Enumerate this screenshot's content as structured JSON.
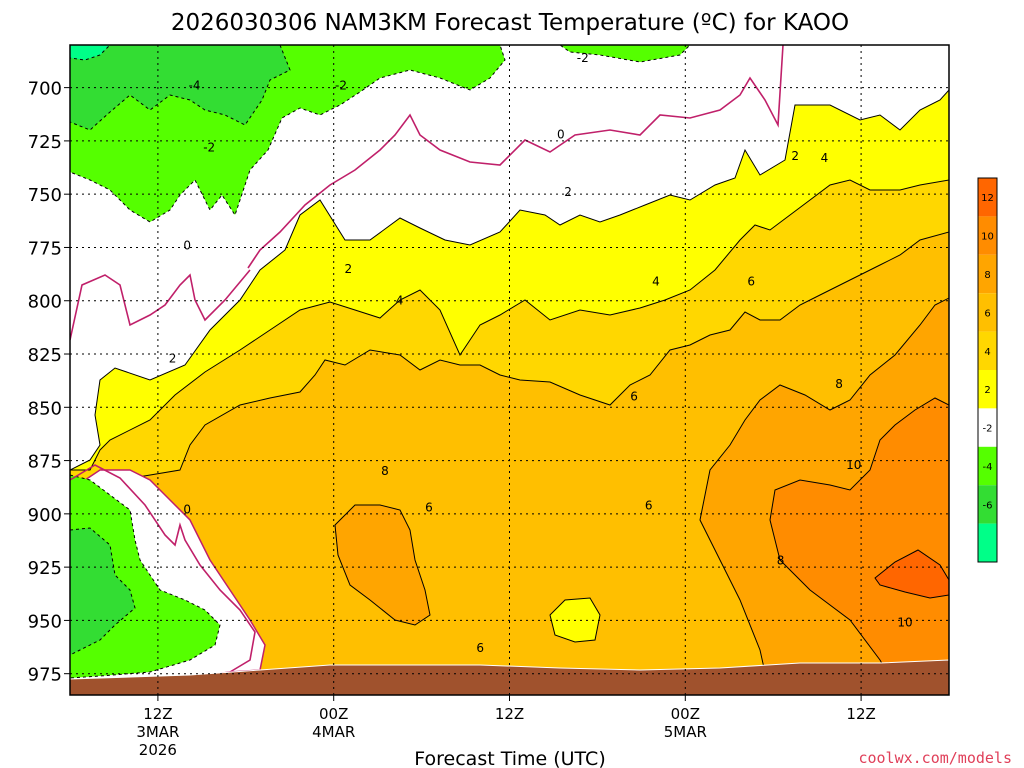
{
  "chart_data": {
    "type": "heatmap",
    "title": "2026030306 NAM3KM Forecast Temperature (ºC) for KAOO",
    "xlabel": "Forecast Time (UTC)",
    "ylabel": "",
    "credit": "coolwx.com/models",
    "x_ticks": [
      {
        "label": "12Z",
        "sub1": "3MAR",
        "sub2": "2026",
        "hour": 6
      },
      {
        "label": "00Z",
        "sub1": "4MAR",
        "sub2": "",
        "hour": 18
      },
      {
        "label": "12Z",
        "sub1": "",
        "sub2": "",
        "hour": 30
      },
      {
        "label": "00Z",
        "sub1": "5MAR",
        "sub2": "",
        "hour": 42
      },
      {
        "label": "12Z",
        "sub1": "",
        "sub2": "",
        "hour": 54
      }
    ],
    "xlim": [
      0,
      60
    ],
    "ylim": [
      680,
      985
    ],
    "y_ticks": [
      700,
      725,
      750,
      775,
      800,
      825,
      850,
      875,
      900,
      925,
      950,
      975
    ],
    "colorbar": {
      "ticks": [
        12,
        10,
        8,
        6,
        4,
        2,
        -2,
        -4,
        -6
      ],
      "bins": [
        {
          "lo": 12,
          "hi": 14,
          "color": "#ff6600"
        },
        {
          "lo": 10,
          "hi": 12,
          "color": "#ff8c00"
        },
        {
          "lo": 8,
          "hi": 10,
          "color": "#ffa500"
        },
        {
          "lo": 6,
          "hi": 8,
          "color": "#ffbf00"
        },
        {
          "lo": 4,
          "hi": 6,
          "color": "#ffd700"
        },
        {
          "lo": 2,
          "hi": 4,
          "color": "#ffff00"
        },
        {
          "lo": -2,
          "hi": 2,
          "color": "#ffffff"
        },
        {
          "lo": -4,
          "hi": -2,
          "color": "#55ff00"
        },
        {
          "lo": -6,
          "hi": -4,
          "color": "#33dd33"
        },
        {
          "lo": -8,
          "hi": -6,
          "color": "#00ff88"
        }
      ]
    },
    "contour_labels": [
      {
        "text": "-2",
        "hour": 35,
        "p": 686
      },
      {
        "text": "-4",
        "hour": 8.5,
        "p": 699
      },
      {
        "text": "-2",
        "hour": 18.5,
        "p": 699
      },
      {
        "text": "-2",
        "hour": 9.5,
        "p": 728
      },
      {
        "text": "0",
        "hour": 33.5,
        "p": 722
      },
      {
        "text": "0",
        "hour": 8,
        "p": 774
      },
      {
        "text": "2",
        "hour": 34,
        "p": 749
      },
      {
        "text": "2",
        "hour": 49.5,
        "p": 732
      },
      {
        "text": "4",
        "hour": 51.5,
        "p": 733
      },
      {
        "text": "2",
        "hour": 19,
        "p": 785
      },
      {
        "text": "4",
        "hour": 22.5,
        "p": 800
      },
      {
        "text": "4",
        "hour": 40,
        "p": 791
      },
      {
        "text": "6",
        "hour": 46.5,
        "p": 791
      },
      {
        "text": "2",
        "hour": 7,
        "p": 827
      },
      {
        "text": "6",
        "hour": 38.5,
        "p": 845
      },
      {
        "text": "8",
        "hour": 52.5,
        "p": 839
      },
      {
        "text": "8",
        "hour": 21.5,
        "p": 880
      },
      {
        "text": "6",
        "hour": 24.5,
        "p": 897
      },
      {
        "text": "0",
        "hour": 8,
        "p": 898
      },
      {
        "text": "6",
        "hour": 39.5,
        "p": 896
      },
      {
        "text": "10",
        "hour": 53.5,
        "p": 877
      },
      {
        "text": "8",
        "hour": 48.5,
        "p": 922
      },
      {
        "text": "10",
        "hour": 57,
        "p": 951
      },
      {
        "text": "6",
        "hour": 28,
        "p": 963
      }
    ]
  }
}
